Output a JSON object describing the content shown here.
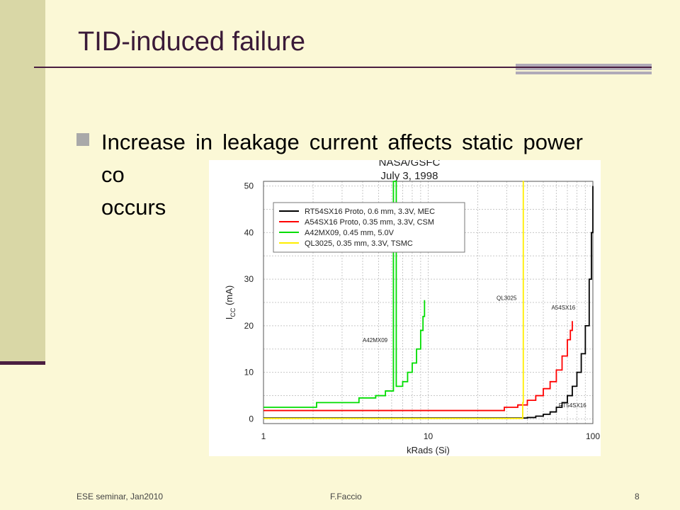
{
  "slide": {
    "title": "TID-induced failure",
    "bullet_text": "Increase in leakage current affects static power co",
    "bullet_line3": "occurs",
    "footer_left": "ESE seminar,  Jan2010",
    "footer_center": "F.Faccio",
    "footer_right": "8"
  },
  "colors": {
    "background": "#fbf8d6",
    "left_bar": "#d9d7a6",
    "title": "#3a1a38",
    "rule": "#4a1e40"
  },
  "chart_data": {
    "type": "line",
    "title": "NASA/GSFC",
    "subtitle": "July 3, 1998",
    "xlabel": "kRads (Si)",
    "ylabel_main": "I",
    "ylabel_sub": "CC",
    "ylabel_unit": " (mA)",
    "xscale": "log",
    "xlim": [
      1,
      100
    ],
    "ylim": [
      -1,
      51
    ],
    "x_ticks": [
      "1",
      "10",
      "100"
    ],
    "y_ticks": [
      "0",
      "10",
      "20",
      "30",
      "40",
      "50"
    ],
    "grid": true,
    "legend_position": "top-left",
    "series": [
      {
        "name": "RT54SX16 Proto, 0.6 mm, 3.3V, MEC",
        "color": "#000000",
        "label": "RT54SX16",
        "points": [
          [
            1,
            0.2
          ],
          [
            20,
            0.2
          ],
          [
            40,
            0.3
          ],
          [
            45,
            0.6
          ],
          [
            50,
            1.0
          ],
          [
            55,
            1.5
          ],
          [
            60,
            2.5
          ],
          [
            65,
            3.5
          ],
          [
            70,
            5.0
          ],
          [
            75,
            7.0
          ],
          [
            80,
            10.0
          ],
          [
            85,
            14.0
          ],
          [
            90,
            20.0
          ],
          [
            95,
            30.0
          ],
          [
            98,
            40.0
          ],
          [
            100,
            50.0
          ]
        ]
      },
      {
        "name": "A54SX16 Proto, 0.35 mm, 3.3V, CSM",
        "color": "#ff0000",
        "label": "A54SX16",
        "points": [
          [
            1,
            1.8
          ],
          [
            28,
            1.8
          ],
          [
            29,
            2.5
          ],
          [
            35,
            3.0
          ],
          [
            40,
            4.0
          ],
          [
            45,
            5.0
          ],
          [
            50,
            6.5
          ],
          [
            55,
            8.0
          ],
          [
            60,
            10.5
          ],
          [
            65,
            13.5
          ],
          [
            70,
            17.0
          ],
          [
            73,
            19.0
          ],
          [
            75,
            21.0
          ]
        ]
      },
      {
        "name": "A42MX09, 0.45 mm, 5.0V",
        "color": "#00dd00",
        "label": "A42MX09",
        "points": [
          [
            1,
            2.5
          ],
          [
            2,
            2.5
          ],
          [
            2.1,
            3.5
          ],
          [
            3.5,
            3.5
          ],
          [
            3.8,
            4.5
          ],
          [
            4.8,
            5.0
          ],
          [
            5.5,
            6.0
          ],
          [
            6.1,
            6.0
          ],
          [
            6.15,
            51.0
          ],
          [
            6.3,
            51.0
          ],
          [
            6.4,
            7.0
          ],
          [
            7,
            8.0
          ],
          [
            7.5,
            10.0
          ],
          [
            8,
            12.0
          ],
          [
            8.5,
            15.0
          ],
          [
            9,
            19.0
          ],
          [
            9.3,
            22.0
          ],
          [
            9.5,
            25.5
          ]
        ]
      },
      {
        "name": "QL3025, 0.35 mm, 3.3V, TSMC",
        "color": "#ffee00",
        "label": "QL3025",
        "points": [
          [
            1,
            0.1
          ],
          [
            37,
            0.1
          ],
          [
            37.5,
            3.5
          ],
          [
            37.8,
            51.0
          ],
          [
            38.0,
            51.0
          ]
        ]
      }
    ],
    "annotations": [
      {
        "text": "A42MX09",
        "x": 4.0,
        "y": 16.5
      },
      {
        "text": "QL3025",
        "x": 26.0,
        "y": 25.5
      },
      {
        "text": "A54SX16",
        "x": 56.0,
        "y": 23.5
      },
      {
        "text": "RT54SX16",
        "x": 62.0,
        "y": 2.5
      }
    ]
  }
}
